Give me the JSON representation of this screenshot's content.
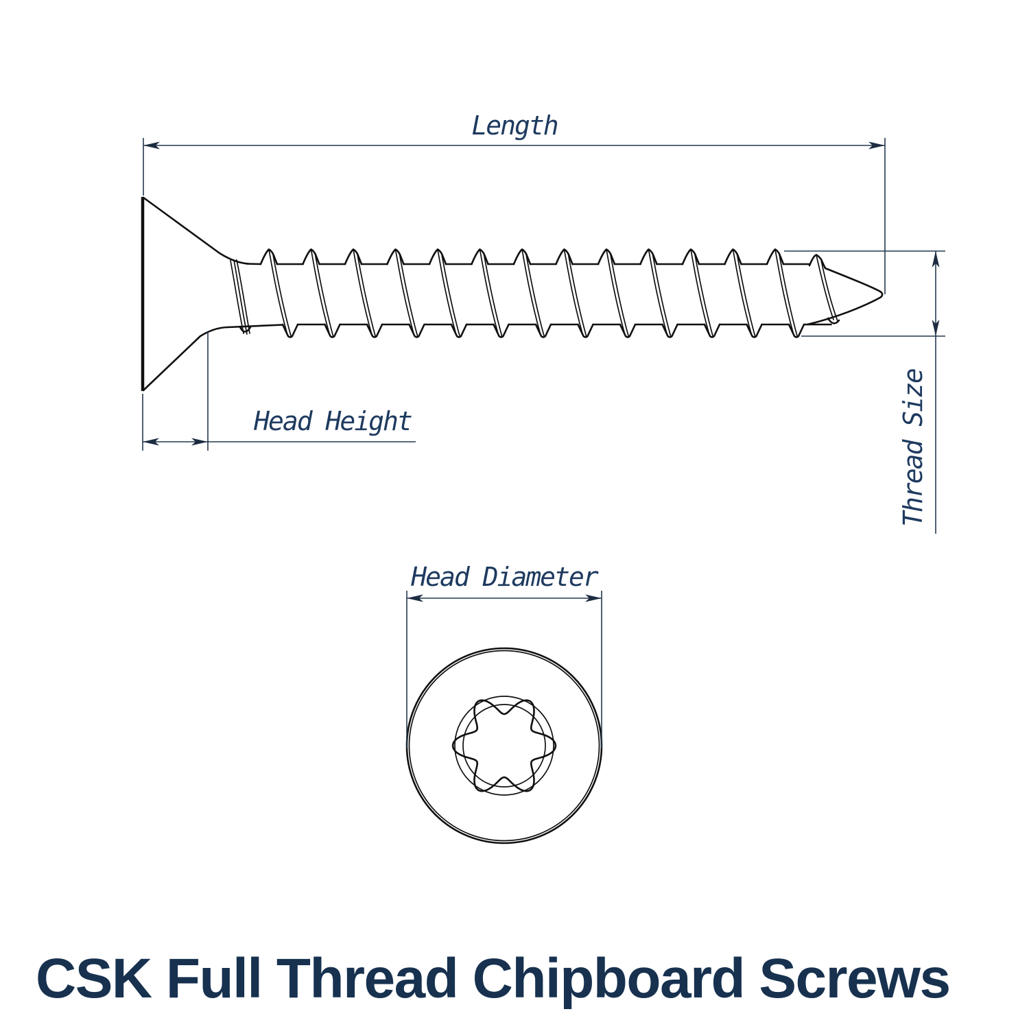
{
  "page": {
    "background_color": "#ffffff"
  },
  "title": {
    "text": "CSK Full Thread Chipboard Screws",
    "color": "#17314f"
  },
  "colors": {
    "outline": "#101010",
    "dimension_lines": "#24384f",
    "label_text": "#1e3a5f"
  },
  "side_view": {
    "labels": {
      "length": "Length",
      "head_height": "Head Height",
      "thread_size": "Thread Size"
    }
  },
  "top_view": {
    "drive_style": "torx-6-lobe-recess",
    "labels": {
      "head_diameter": "Head Diameter"
    }
  }
}
